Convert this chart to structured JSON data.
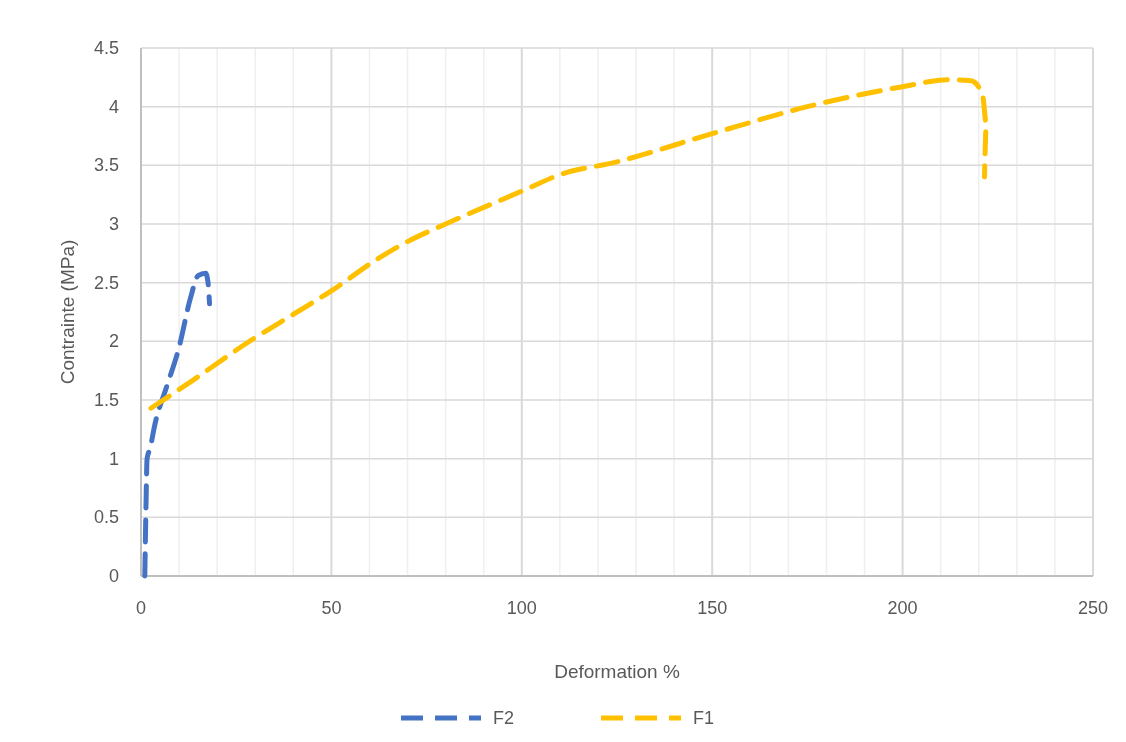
{
  "chart_data": {
    "type": "line",
    "xlabel": "Deformation %",
    "ylabel": "Contrainte (MPa)",
    "xlim": [
      0,
      250
    ],
    "ylim": [
      0,
      4.5
    ],
    "xticks": [
      0,
      {
        "value": 10,
        "label": null
      },
      {
        "value": 20,
        "label": null
      },
      {
        "value": 30,
        "label": null
      },
      {
        "value": 40,
        "label": null
      },
      50,
      {
        "value": 60,
        "label": null
      },
      {
        "value": 70,
        "label": null
      },
      {
        "value": 80,
        "label": null
      },
      {
        "value": 90,
        "label": null
      },
      100,
      {
        "value": 110,
        "label": null
      },
      {
        "value": 120,
        "label": null
      },
      {
        "value": 130,
        "label": null
      },
      {
        "value": 140,
        "label": null
      },
      150,
      {
        "value": 160,
        "label": null
      },
      {
        "value": 170,
        "label": null
      },
      {
        "value": 180,
        "label": null
      },
      {
        "value": 190,
        "label": null
      },
      200,
      {
        "value": 210,
        "label": null
      },
      {
        "value": 220,
        "label": null
      },
      {
        "value": 230,
        "label": null
      },
      {
        "value": 240,
        "label": null
      },
      250
    ],
    "yticks": [
      0,
      0.5,
      1,
      1.5,
      2,
      2.5,
      3,
      3.5,
      4,
      4.5
    ],
    "grid": true,
    "legend": "bottom",
    "line_style": "dashed",
    "marker": "none",
    "series": [
      {
        "name": "F2",
        "color": "#4472c4",
        "x": [
          1,
          1.3,
          1.6,
          2.4,
          3.7,
          6.6,
          10,
          13,
          15,
          17,
          17.6,
          18
        ],
        "values": [
          0,
          0.58,
          1.0,
          1.09,
          1.3,
          1.6,
          1.95,
          2.37,
          2.56,
          2.58,
          2.5,
          2.32
        ]
      },
      {
        "name": "F1",
        "color": "#ffc000",
        "x": [
          2.6,
          13.7,
          28,
          41,
          50,
          62,
          70,
          80,
          100,
          110,
          125,
          150,
          175,
          200,
          212,
          218,
          221,
          222,
          221.5
        ],
        "values": [
          1.43,
          1.67,
          1.99,
          2.25,
          2.43,
          2.7,
          2.85,
          3.0,
          3.28,
          3.42,
          3.53,
          3.77,
          4.0,
          4.17,
          4.23,
          4.22,
          4.1,
          3.85,
          3.4
        ]
      }
    ]
  }
}
